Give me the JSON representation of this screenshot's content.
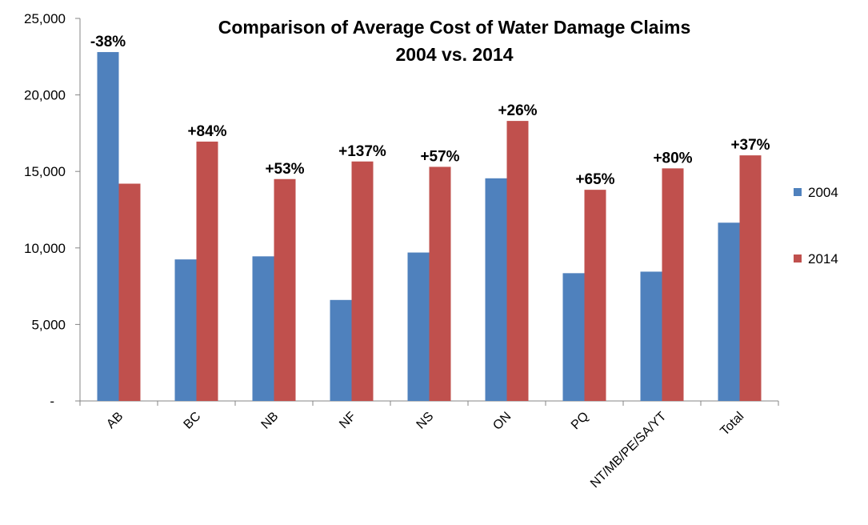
{
  "chart_data": {
    "type": "bar",
    "title": [
      "Comparison of Average Cost of Water Damage Claims",
      "2004 vs. 2014"
    ],
    "xlabel": "",
    "ylabel": "",
    "ylim": [
      0,
      25000
    ],
    "y_ticks": [
      0,
      5000,
      10000,
      15000,
      20000,
      25000
    ],
    "y_tick_labels": [
      "-",
      "5,000",
      "10,000",
      "15,000",
      "20,000",
      "25,000"
    ],
    "categories": [
      "AB",
      "BC",
      "NB",
      "NF",
      "NS",
      "ON",
      "PQ",
      "NT/MB/PE/SA/YT",
      "Total"
    ],
    "series": [
      {
        "name": "2004",
        "color": "#4F81BD",
        "values": [
          22800,
          9250,
          9450,
          6600,
          9700,
          14550,
          8350,
          8450,
          11650
        ]
      },
      {
        "name": "2014",
        "color": "#C0504D",
        "values": [
          14200,
          16950,
          14500,
          15650,
          15300,
          18300,
          13800,
          15200,
          16050
        ]
      }
    ],
    "annotations": [
      "-38%",
      "+84%",
      "+53%",
      "+137%",
      "+57%",
      "+26%",
      "+65%",
      "+80%",
      "+37%"
    ],
    "legend_position": "right",
    "grid": false
  }
}
